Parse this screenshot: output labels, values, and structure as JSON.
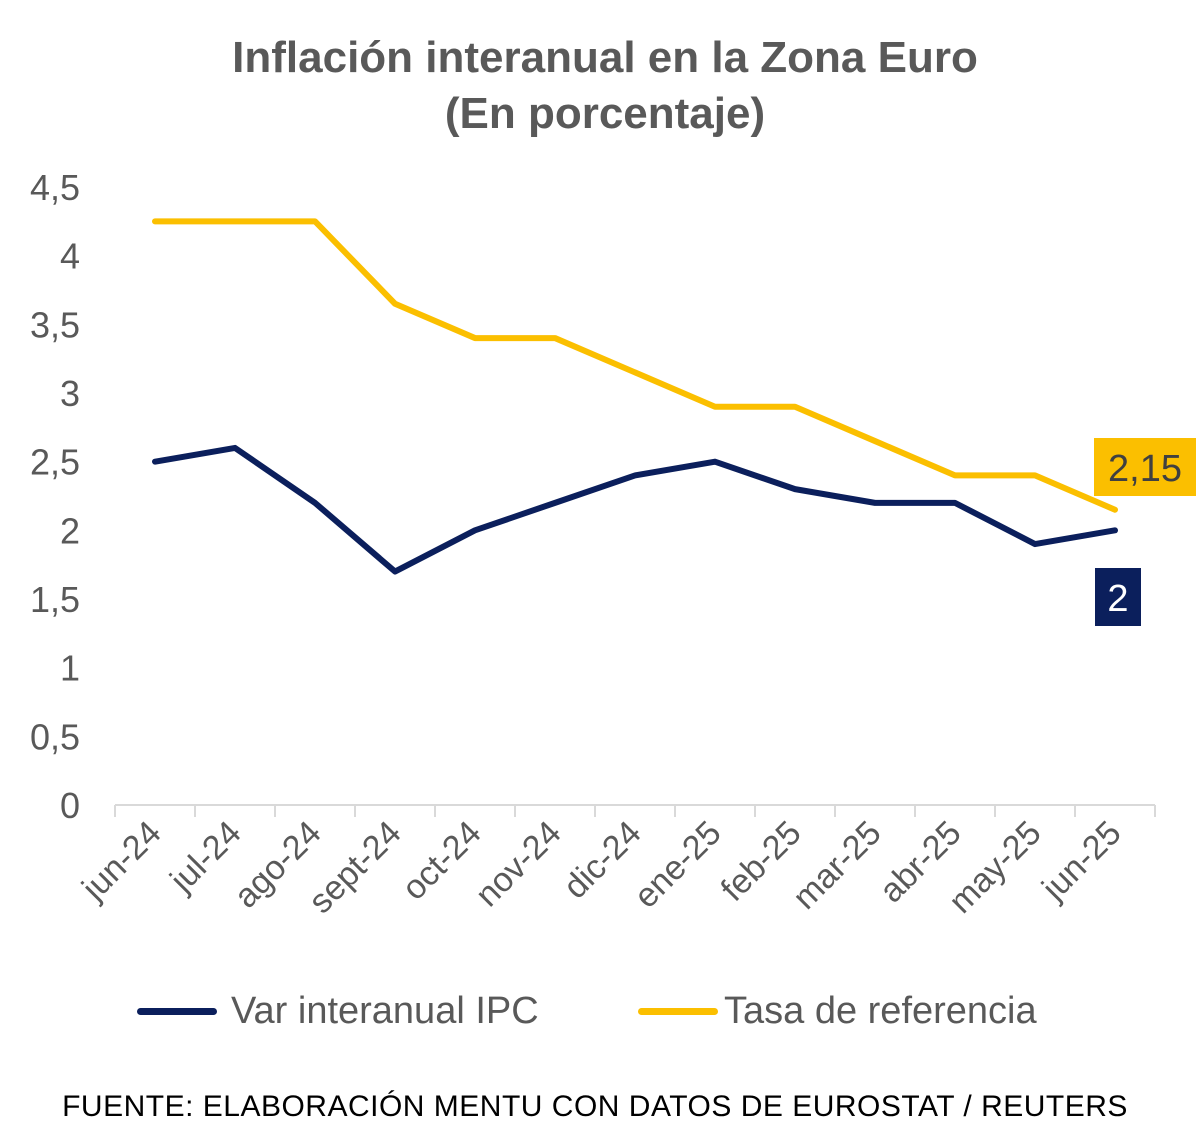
{
  "chart_data": {
    "type": "line",
    "title": "Inflación interanual en la Zona Euro",
    "subtitle": "(En porcentaje)",
    "categories": [
      "jun-24",
      "jul-24",
      "ago-24",
      "sept-24",
      "oct-24",
      "nov-24",
      "dic-24",
      "ene-25",
      "feb-25",
      "mar-25",
      "abr-25",
      "may-25",
      "jun-25"
    ],
    "series": [
      {
        "name": "Var interanual IPC",
        "color": "#0b1f5c",
        "values": [
          2.5,
          2.6,
          2.2,
          1.7,
          2.0,
          2.2,
          2.4,
          2.5,
          2.3,
          2.2,
          2.2,
          1.9,
          2.0
        ],
        "end_label": "2"
      },
      {
        "name": "Tasa de referencia",
        "color": "#fbbf00",
        "values": [
          4.25,
          4.25,
          4.25,
          3.65,
          3.4,
          3.4,
          3.15,
          2.9,
          2.9,
          2.65,
          2.4,
          2.4,
          2.15
        ],
        "end_label": "2,15"
      }
    ],
    "yticks": [
      "0",
      "0,5",
      "1",
      "1,5",
      "2",
      "2,5",
      "3",
      "3,5",
      "4",
      "4,5"
    ],
    "ylim": [
      0,
      4.5
    ],
    "grid": false,
    "legend_position": "bottom"
  },
  "source": "FUENTE: ELABORACIÓN MENTU CON DATOS DE EUROSTAT / REUTERS"
}
